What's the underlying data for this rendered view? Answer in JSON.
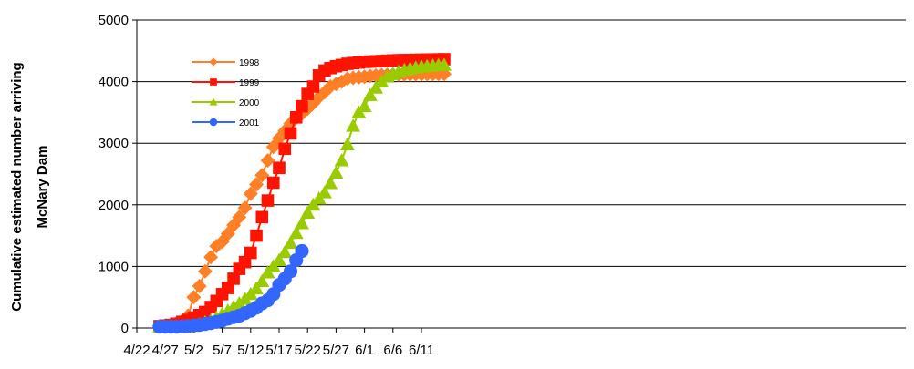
{
  "chart_data": {
    "type": "line",
    "title": "",
    "xlabel": "",
    "ylabel_lines": [
      "Cumulative estimated number arriving",
      "McNary Dam"
    ],
    "x_tick_labels": [
      "4/22",
      "4/27",
      "5/2",
      "5/7",
      "5/12",
      "5/17",
      "5/22",
      "5/27",
      "6/1",
      "6/6",
      "6/11"
    ],
    "y_tick_labels": [
      "0",
      "1000",
      "2000",
      "3000",
      "4000",
      "5000"
    ],
    "ylim": [
      0,
      5000
    ],
    "grid": "horizontal major gridlines",
    "legend_position": "upper-left inside plot",
    "series": [
      {
        "name": "1998",
        "color": "#FF7F27",
        "marker": "diamond",
        "x": [
          "4/26",
          "4/27",
          "4/28",
          "4/29",
          "4/30",
          "5/1",
          "5/2",
          "5/3",
          "5/4",
          "5/5",
          "5/6",
          "5/7",
          "5/8",
          "5/9",
          "5/10",
          "5/11",
          "5/12",
          "5/13",
          "5/14",
          "5/15",
          "5/16",
          "5/17",
          "5/18",
          "5/19",
          "5/20",
          "5/21",
          "5/22",
          "5/23",
          "5/24",
          "5/25",
          "5/26",
          "5/27",
          "5/28",
          "5/29",
          "5/30",
          "5/31",
          "6/1",
          "6/2",
          "6/3",
          "6/4",
          "6/5",
          "6/6",
          "6/7",
          "6/8",
          "6/9",
          "6/10",
          "6/11",
          "6/12",
          "6/13",
          "6/14",
          "6/15"
        ],
        "y": [
          30,
          40,
          60,
          80,
          120,
          200,
          500,
          680,
          920,
          1150,
          1330,
          1400,
          1530,
          1670,
          1800,
          1950,
          2180,
          2330,
          2480,
          2720,
          2940,
          3080,
          3200,
          3320,
          3420,
          3480,
          3560,
          3650,
          3750,
          3830,
          3920,
          3960,
          4000,
          4050,
          4060,
          4070,
          4080,
          4090,
          4100,
          4105,
          4110,
          4112,
          4114,
          4116,
          4118,
          4119,
          4120,
          4121,
          4122,
          4123,
          4124
        ]
      },
      {
        "name": "1999",
        "color": "#FF1200",
        "marker": "square",
        "x": [
          "4/26",
          "4/27",
          "4/28",
          "4/29",
          "4/30",
          "5/1",
          "5/2",
          "5/3",
          "5/4",
          "5/5",
          "5/6",
          "5/7",
          "5/8",
          "5/9",
          "5/10",
          "5/11",
          "5/12",
          "5/13",
          "5/14",
          "5/15",
          "5/16",
          "5/17",
          "5/18",
          "5/19",
          "5/20",
          "5/21",
          "5/22",
          "5/23",
          "5/24",
          "5/25",
          "5/26",
          "5/27",
          "5/28",
          "5/29",
          "5/30",
          "5/31",
          "6/1",
          "6/2",
          "6/3",
          "6/4",
          "6/5",
          "6/6",
          "6/7",
          "6/8",
          "6/9",
          "6/10",
          "6/11",
          "6/12",
          "6/13",
          "6/14",
          "6/15"
        ],
        "y": [
          30,
          40,
          50,
          70,
          100,
          130,
          170,
          210,
          260,
          340,
          440,
          550,
          650,
          800,
          960,
          1070,
          1220,
          1500,
          1800,
          2070,
          2360,
          2600,
          2910,
          3160,
          3420,
          3600,
          3800,
          3920,
          4100,
          4180,
          4220,
          4250,
          4270,
          4290,
          4300,
          4310,
          4320,
          4325,
          4330,
          4335,
          4340,
          4345,
          4348,
          4350,
          4352,
          4354,
          4356,
          4358,
          4360,
          4362,
          4364
        ]
      },
      {
        "name": "2000",
        "color": "#99CC00",
        "marker": "triangle",
        "x": [
          "4/26",
          "4/27",
          "4/28",
          "4/29",
          "4/30",
          "5/1",
          "5/2",
          "5/3",
          "5/4",
          "5/5",
          "5/6",
          "5/7",
          "5/8",
          "5/9",
          "5/10",
          "5/11",
          "5/12",
          "5/13",
          "5/14",
          "5/15",
          "5/16",
          "5/17",
          "5/18",
          "5/19",
          "5/20",
          "5/21",
          "5/22",
          "5/23",
          "5/24",
          "5/25",
          "5/26",
          "5/27",
          "5/28",
          "5/29",
          "5/30",
          "5/31",
          "6/1",
          "6/2",
          "6/3",
          "6/4",
          "6/5",
          "6/6",
          "6/7",
          "6/8",
          "6/9",
          "6/10",
          "6/11",
          "6/12",
          "6/13",
          "6/14",
          "6/15"
        ],
        "y": [
          20,
          20,
          20,
          20,
          25,
          30,
          40,
          60,
          90,
          120,
          170,
          230,
          280,
          340,
          400,
          470,
          550,
          640,
          760,
          900,
          1000,
          1100,
          1230,
          1380,
          1540,
          1700,
          1870,
          2000,
          2100,
          2200,
          2350,
          2520,
          2720,
          2980,
          3280,
          3500,
          3600,
          3780,
          3900,
          4000,
          4080,
          4120,
          4160,
          4190,
          4210,
          4225,
          4240,
          4250,
          4258,
          4265,
          4270
        ]
      },
      {
        "name": "2001",
        "color": "#3366FF",
        "marker": "circle",
        "x": [
          "4/26",
          "4/27",
          "4/28",
          "4/29",
          "4/30",
          "5/1",
          "5/2",
          "5/3",
          "5/4",
          "5/5",
          "5/6",
          "5/7",
          "5/8",
          "5/9",
          "5/10",
          "5/11",
          "5/12",
          "5/13",
          "5/14",
          "5/15",
          "5/16",
          "5/17",
          "5/18",
          "5/19",
          "5/20",
          "5/21"
        ],
        "y": [
          20,
          20,
          20,
          20,
          25,
          30,
          40,
          50,
          65,
          80,
          100,
          120,
          150,
          175,
          200,
          240,
          280,
          330,
          400,
          450,
          550,
          700,
          800,
          920,
          1100,
          1250
        ]
      }
    ]
  }
}
